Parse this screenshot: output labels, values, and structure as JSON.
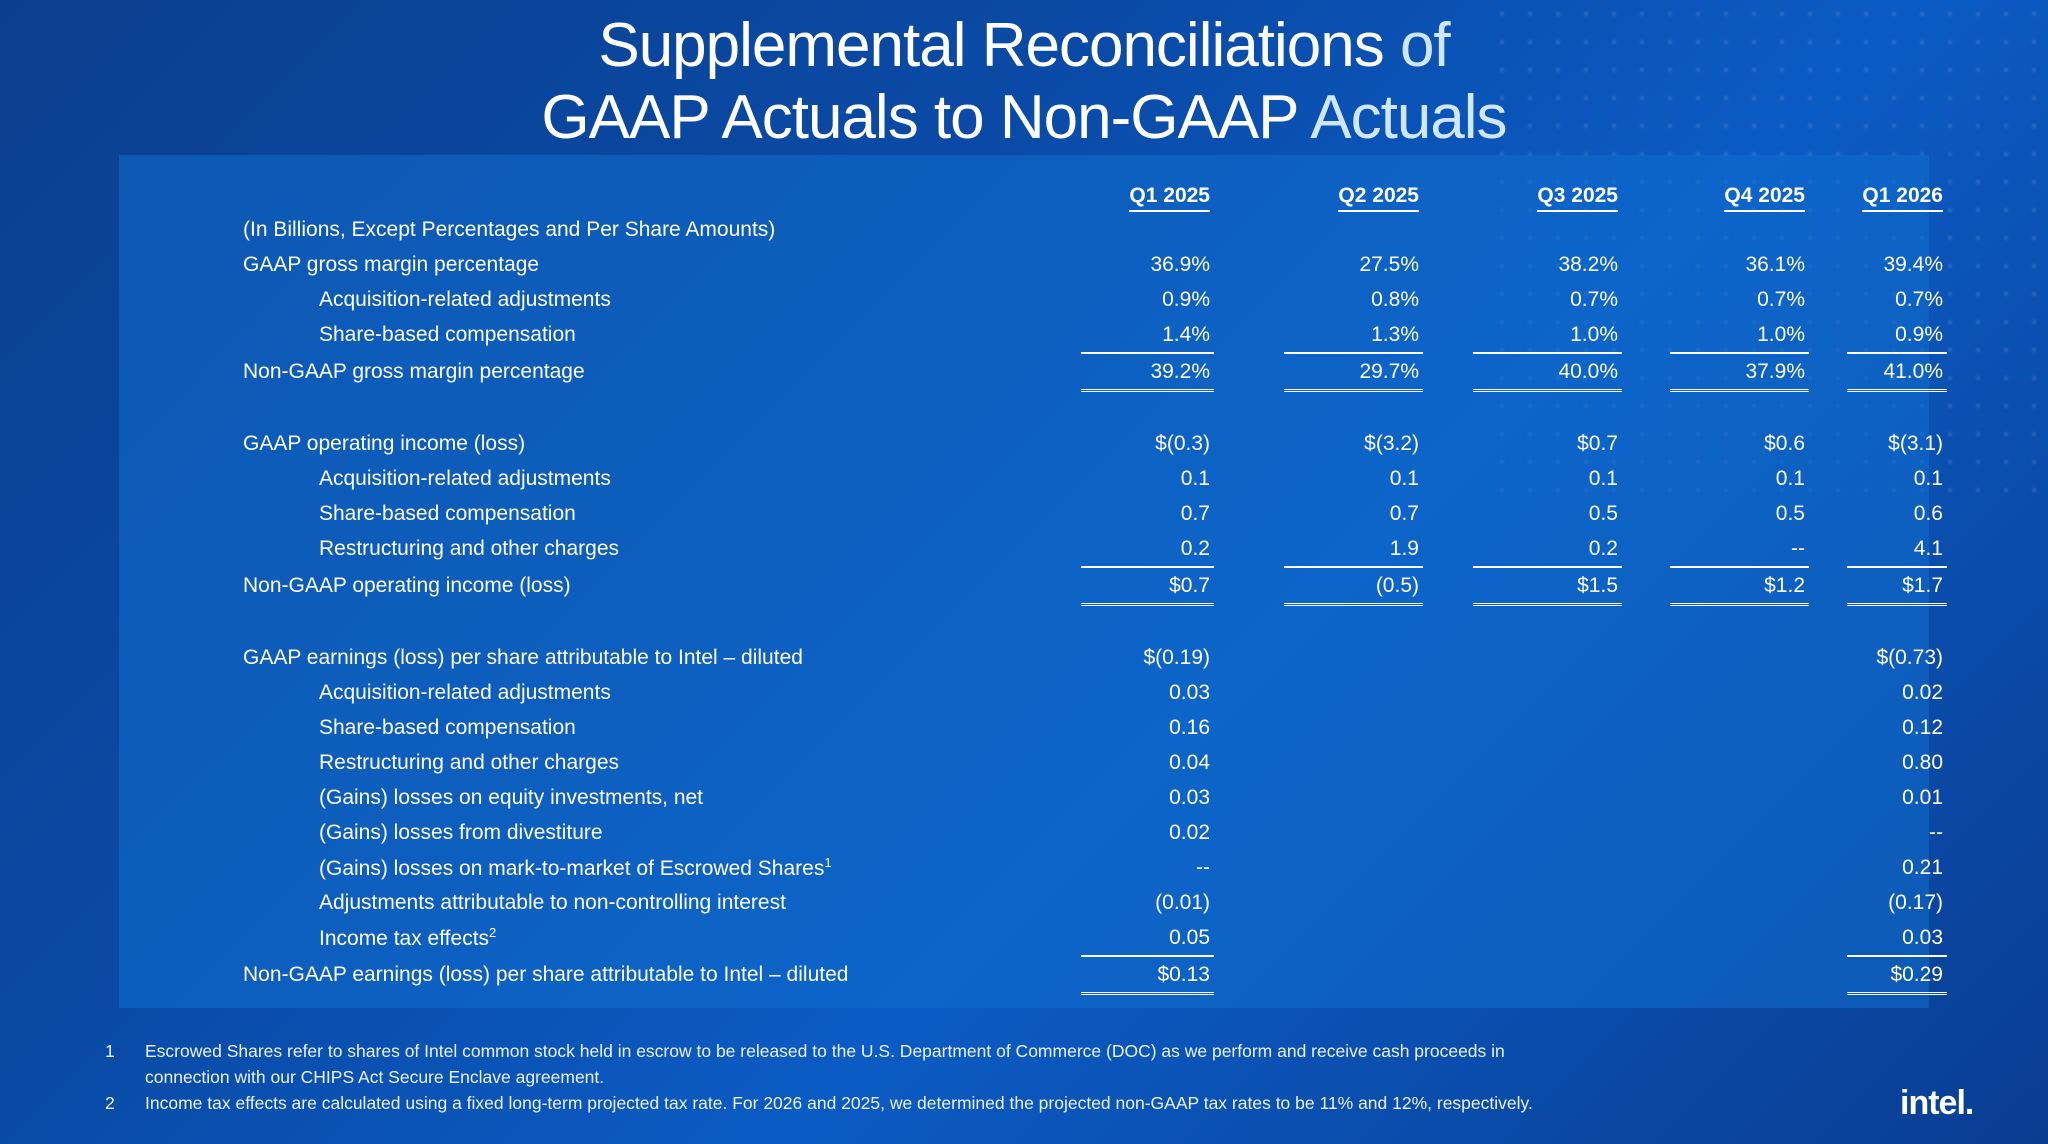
{
  "title": {
    "line1_main": "Supplemental Reconciliations",
    "line1_accent": "of",
    "line2_main": "GAAP Actuals to Non-GAAP",
    "line2_accent": "Actuals"
  },
  "columns": [
    "Q1 2025",
    "Q2 2025",
    "Q3 2025",
    "Q4 2025",
    "Q1 2026"
  ],
  "units_note": "(In Billions, Except Percentages and Per Share Amounts)",
  "gross_margin": [
    {
      "label": "GAAP gross margin percentage",
      "values": [
        "36.9%",
        "27.5%",
        "38.2%",
        "36.1%",
        "39.4%"
      ]
    },
    {
      "label": "Acquisition-related adjustments",
      "values": [
        "0.9%",
        "0.8%",
        "0.7%",
        "0.7%",
        "0.7%"
      ]
    },
    {
      "label": "Share-based compensation",
      "values": [
        "1.4%",
        "1.3%",
        "1.0%",
        "1.0%",
        "0.9%"
      ]
    },
    {
      "label": "Non-GAAP gross margin percentage",
      "values": [
        "39.2%",
        "29.7%",
        "40.0%",
        "37.9%",
        "41.0%"
      ]
    }
  ],
  "operating_income": [
    {
      "label": "GAAP operating income (loss)",
      "values": [
        "$(0.3)",
        "$(3.2)",
        "$0.7",
        "$0.6",
        "$(3.1)"
      ]
    },
    {
      "label": "Acquisition-related adjustments",
      "values": [
        "0.1",
        "0.1",
        "0.1",
        "0.1",
        "0.1"
      ]
    },
    {
      "label": "Share-based compensation",
      "values": [
        "0.7",
        "0.7",
        "0.5",
        "0.5",
        "0.6"
      ]
    },
    {
      "label": "Restructuring and other charges",
      "values": [
        "0.2",
        "1.9",
        "0.2",
        "--",
        "4.1"
      ]
    },
    {
      "label": "Non-GAAP operating income (loss)",
      "values": [
        "$0.7",
        "(0.5)",
        "$1.5",
        "$1.2",
        "$1.7"
      ]
    }
  ],
  "eps": [
    {
      "label": "GAAP earnings (loss) per share attributable to Intel – diluted",
      "values": [
        "$(0.19)",
        "$(0.73)"
      ]
    },
    {
      "label": "Acquisition-related adjustments",
      "values": [
        "0.03",
        "0.02"
      ]
    },
    {
      "label": "Share-based compensation",
      "values": [
        "0.16",
        "0.12"
      ]
    },
    {
      "label": "Restructuring and other charges",
      "values": [
        "0.04",
        "0.80"
      ]
    },
    {
      "label": "(Gains) losses on equity investments, net",
      "values": [
        "0.03",
        "0.01"
      ]
    },
    {
      "label": "(Gains) losses from divestiture",
      "values": [
        "0.02",
        "--"
      ]
    },
    {
      "label": "(Gains) losses on mark-to-market of Escrowed Shares",
      "sup": "1",
      "values": [
        "--",
        "0.21"
      ]
    },
    {
      "label": "Adjustments attributable to non-controlling interest",
      "values": [
        "(0.01)",
        "(0.17)"
      ]
    },
    {
      "label": "Income tax effects",
      "sup": "2",
      "values": [
        "0.05",
        "0.03"
      ]
    },
    {
      "label": "Non-GAAP earnings (loss) per share attributable to Intel – diluted",
      "values": [
        "$0.13",
        "$0.29"
      ]
    }
  ],
  "footnotes": [
    {
      "num": "1",
      "lines": [
        "Escrowed Shares refer to shares of Intel common stock held in escrow to be released to the U.S. Department of Commerce (DOC) as we perform and receive cash proceeds in",
        "connection with our CHIPS Act Secure Enclave agreement."
      ]
    },
    {
      "num": "2",
      "lines": [
        "Income tax effects are calculated using a fixed long-term projected tax rate. For 2026 and 2025, we determined the projected non-GAAP tax rates to be 11% and 12%, respectively."
      ]
    }
  ],
  "logo": "intel."
}
